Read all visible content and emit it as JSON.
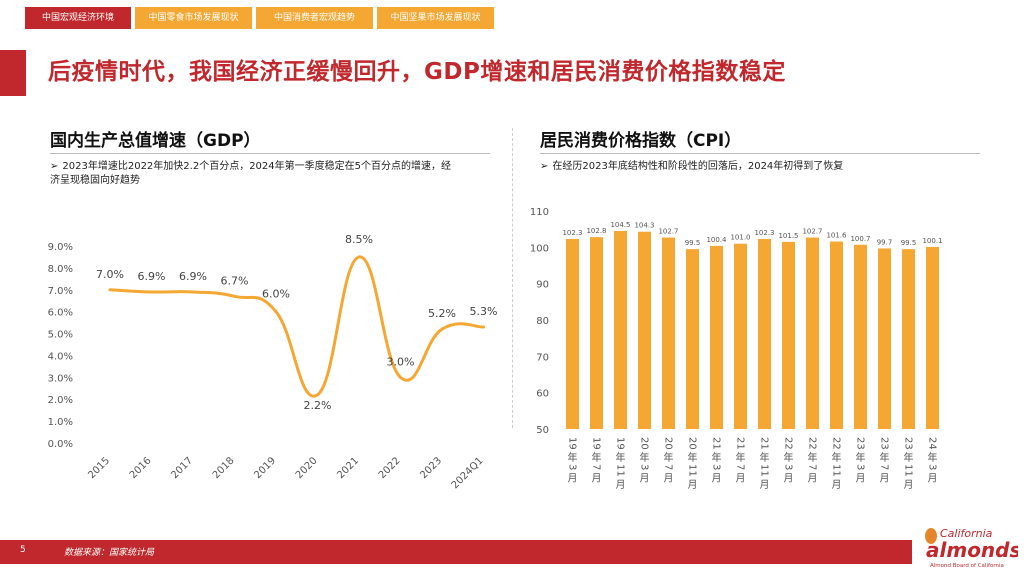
{
  "tabs": [
    {
      "label": "中国宏观经济环境",
      "active": true
    },
    {
      "label": "中国零食市场发展现状",
      "active": false
    },
    {
      "label": "中国消费者宏观趋势",
      "active": false
    },
    {
      "label": "中国坚果市场发展现状",
      "active": false
    }
  ],
  "title": "后疫情时代，我国经济正缓慢回升，GDP增速和居民消费价格指数稳定",
  "left": {
    "heading": "国内生产总值增速（GDP）",
    "note_arrow": "➢",
    "note_line1": "2023年增速比2022年加快2.2个百分点，2024年第一季度稳定在5个百分点的增速，经",
    "note_line2": "济呈现稳固向好趋势"
  },
  "right": {
    "heading": "居民消费价格指数（CPI）",
    "note_arrow": "➢",
    "note": "在经历2023年底结构性和阶段性的回落后，2024年初得到了恢复"
  },
  "chart_data": [
    {
      "type": "line",
      "title": "国内生产总值增速（GDP）",
      "categories": [
        "2015",
        "2016",
        "2017",
        "2018",
        "2019",
        "2020",
        "2021",
        "2022",
        "2023",
        "2024Q1"
      ],
      "values": [
        7.0,
        6.9,
        6.9,
        6.7,
        6.0,
        2.2,
        8.5,
        3.0,
        5.2,
        5.3
      ],
      "labels": [
        "7.0%",
        "6.9%",
        "6.9%",
        "6.7%",
        "6.0%",
        "2.2%",
        "8.5%",
        "3.0%",
        "5.2%",
        "5.3%"
      ],
      "yticks": [
        "0.0%",
        "1.0%",
        "2.0%",
        "3.0%",
        "4.0%",
        "5.0%",
        "6.0%",
        "7.0%",
        "8.0%",
        "9.0%"
      ],
      "ylim": [
        0,
        9
      ],
      "color": "#f4a732"
    },
    {
      "type": "bar",
      "title": "居民消费价格指数（CPI）",
      "categories": [
        "19年3月",
        "19年7月",
        "19年11月",
        "20年3月",
        "20年7月",
        "20年11月",
        "21年3月",
        "21年7月",
        "21年11月",
        "22年3月",
        "22年7月",
        "22年11月",
        "23年3月",
        "23年7月",
        "23年11月",
        "24年3月"
      ],
      "values": [
        102.3,
        102.8,
        104.5,
        104.3,
        102.7,
        99.5,
        100.4,
        101.0,
        102.3,
        101.5,
        102.7,
        101.6,
        100.7,
        99.7,
        99.5,
        100.1
      ],
      "yticks": [
        "50",
        "60",
        "70",
        "80",
        "90",
        "100",
        "110"
      ],
      "ylim": [
        50,
        110
      ],
      "color": "#f4a732"
    }
  ],
  "footer": {
    "page": "5",
    "source": "数据来源：国家统计局"
  },
  "logo": {
    "top": "California",
    "main": "almonds",
    "sub": "Almond Board of California"
  }
}
